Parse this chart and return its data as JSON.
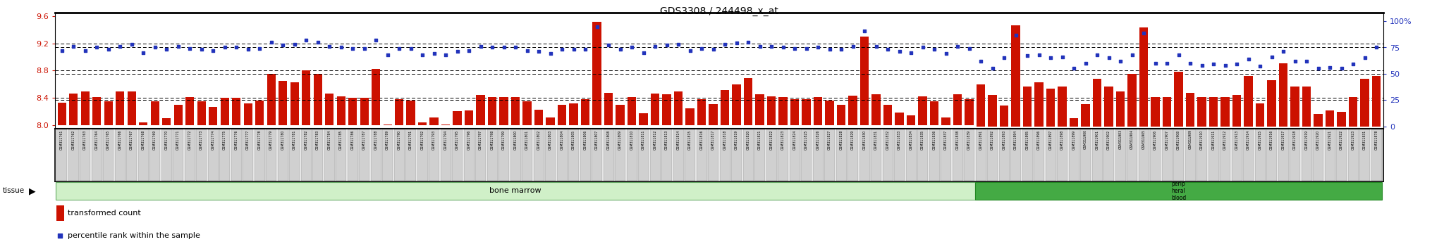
{
  "title": "GDS3308 / 244498_x_at",
  "ylim_left": [
    7.95,
    9.65
  ],
  "ylim_right": [
    -2,
    108
  ],
  "yticks_left": [
    8.0,
    8.4,
    8.8,
    9.2,
    9.6
  ],
  "yticks_right": [
    0,
    25,
    50,
    75,
    100
  ],
  "bar_color": "#cc1100",
  "dot_color": "#2233bb",
  "label_box_color": "#d0d0d0",
  "tissue_color_main": "#d0f0c8",
  "tissue_color_end": "#44aa44",
  "tissue_label_main": "bone marrow",
  "tissue_label_end": "perip\nheral\nblood",
  "samples": [
    "GSM311761",
    "GSM311762",
    "GSM311763",
    "GSM311764",
    "GSM311765",
    "GSM311766",
    "GSM311767",
    "GSM311768",
    "GSM311769",
    "GSM311770",
    "GSM311771",
    "GSM311772",
    "GSM311773",
    "GSM311774",
    "GSM311775",
    "GSM311776",
    "GSM311777",
    "GSM311778",
    "GSM311779",
    "GSM311780",
    "GSM311781",
    "GSM311782",
    "GSM311783",
    "GSM311784",
    "GSM311785",
    "GSM311786",
    "GSM311787",
    "GSM311788",
    "GSM311789",
    "GSM311790",
    "GSM311791",
    "GSM311792",
    "GSM311793",
    "GSM311794",
    "GSM311795",
    "GSM311796",
    "GSM311797",
    "GSM311798",
    "GSM311799",
    "GSM311800",
    "GSM311801",
    "GSM311802",
    "GSM311803",
    "GSM311804",
    "GSM311805",
    "GSM311806",
    "GSM311807",
    "GSM311808",
    "GSM311809",
    "GSM311810",
    "GSM311811",
    "GSM311812",
    "GSM311813",
    "GSM311814",
    "GSM311815",
    "GSM311816",
    "GSM311817",
    "GSM311818",
    "GSM311819",
    "GSM311820",
    "GSM311821",
    "GSM311822",
    "GSM311823",
    "GSM311824",
    "GSM311825",
    "GSM311826",
    "GSM311827",
    "GSM311828",
    "GSM311829",
    "GSM311830",
    "GSM311831",
    "GSM311832",
    "GSM311833",
    "GSM311834",
    "GSM311835",
    "GSM311836",
    "GSM311837",
    "GSM311838",
    "GSM311839",
    "GSM311891",
    "GSM311892",
    "GSM311893",
    "GSM311894",
    "GSM311895",
    "GSM311896",
    "GSM311897",
    "GSM311898",
    "GSM311899",
    "GSM311900",
    "GSM311901",
    "GSM311902",
    "GSM311903",
    "GSM311904",
    "GSM311905",
    "GSM311906",
    "GSM311907",
    "GSM311908",
    "GSM311909",
    "GSM311910",
    "GSM311911",
    "GSM311912",
    "GSM311913",
    "GSM311914",
    "GSM311915",
    "GSM311916",
    "GSM311917",
    "GSM311918",
    "GSM311919",
    "GSM311920",
    "GSM311921",
    "GSM311922",
    "GSM311923",
    "GSM311831",
    "GSM311878"
  ],
  "bar_values_bm": [
    8.33,
    8.46,
    8.5,
    8.41,
    8.35,
    8.5,
    8.5,
    8.04,
    8.35,
    8.1,
    8.3,
    8.41,
    8.35,
    8.27,
    8.4,
    8.4,
    8.32,
    8.36,
    8.75,
    8.65,
    8.63,
    8.8,
    8.75,
    8.46,
    8.42,
    8.4,
    8.4,
    8.83,
    8.01,
    8.38,
    8.36,
    8.04,
    8.11,
    8.01,
    8.21,
    8.22,
    8.44,
    8.41,
    8.41,
    8.41,
    8.35,
    8.23,
    8.12,
    8.3,
    8.32,
    8.38,
    9.52,
    8.48,
    8.3,
    8.41,
    8.18,
    8.46,
    8.45,
    8.5,
    8.25,
    8.38,
    8.31,
    8.52,
    8.6,
    8.69,
    8.45,
    8.42,
    8.41,
    8.38,
    8.38,
    8.41,
    8.36,
    8.3,
    8.43,
    9.3,
    8.45,
    8.3,
    8.19,
    8.15,
    8.42,
    8.35,
    8.12,
    8.45,
    8.38
  ],
  "bar_values_pb": [
    40,
    30,
    20,
    96,
    38,
    42,
    36,
    38,
    8,
    21,
    45,
    38,
    33,
    50,
    94,
    28,
    28,
    52,
    32,
    28,
    28,
    28,
    30,
    48,
    22,
    44,
    60,
    38,
    38,
    12,
    15,
    14,
    28,
    45,
    48
  ],
  "dot_values_bm": [
    72,
    76,
    72,
    75,
    73,
    76,
    78,
    70,
    75,
    73,
    76,
    74,
    73,
    72,
    75,
    75,
    73,
    74,
    80,
    77,
    78,
    82,
    80,
    76,
    75,
    74,
    74,
    82,
    68,
    74,
    74,
    68,
    69,
    68,
    71,
    72,
    76,
    75,
    75,
    75,
    72,
    71,
    69,
    73,
    73,
    73,
    95,
    77,
    73,
    75,
    70,
    76,
    77,
    78,
    72,
    74,
    73,
    78,
    79,
    80,
    76,
    76,
    75,
    74,
    74,
    75,
    73,
    73,
    76,
    91,
    76,
    73,
    71,
    70,
    75,
    73,
    69,
    76,
    74
  ],
  "dot_values_pb": [
    62,
    55,
    65,
    87,
    67,
    68,
    65,
    66,
    55,
    60,
    68,
    65,
    62,
    68,
    89,
    60,
    60,
    68,
    60,
    58,
    59,
    58,
    59,
    64,
    57,
    66,
    71,
    62,
    62,
    55,
    56,
    55,
    59,
    65,
    75
  ],
  "n_bone_marrow": 79,
  "n_peripheral_blood": 35,
  "fig_width": 20.48,
  "fig_height": 3.54,
  "dpi": 100
}
